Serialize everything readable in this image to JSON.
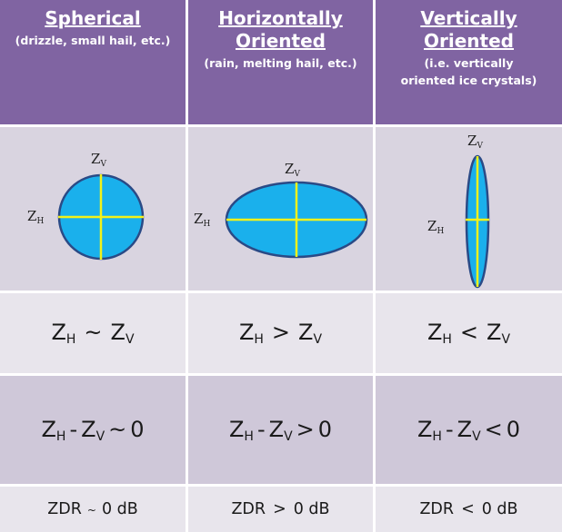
{
  "columns": [
    {
      "title_line1": "Spherical",
      "title_line2": "",
      "subtitle": "(drizzle, small hail, etc.)",
      "reflectivity_relation": {
        "left": "Z",
        "left_sub": "H",
        "op": "~",
        "right": "Z",
        "right_sub": "V"
      },
      "difference_relation": {
        "a": "Z",
        "a_sub": "H",
        "minus": "-",
        "b": "Z",
        "b_sub": "V",
        "op": "~",
        "value": "0"
      },
      "zdr": {
        "label": "ZDR",
        "op": "~",
        "value": "0 dB"
      }
    },
    {
      "title_line1": "Horizontally",
      "title_line2": "Oriented",
      "subtitle": "(rain, melting hail, etc.)",
      "reflectivity_relation": {
        "left": "Z",
        "left_sub": "H",
        "op": ">",
        "right": "Z",
        "right_sub": "V"
      },
      "difference_relation": {
        "a": "Z",
        "a_sub": "H",
        "minus": "-",
        "b": "Z",
        "b_sub": "V",
        "op": ">",
        "value": "0"
      },
      "zdr": {
        "label": "ZDR",
        "op": ">",
        "value": "0 dB"
      }
    },
    {
      "title_line1": "Vertically",
      "title_line2": "Oriented",
      "subtitle": "(i.e. vertically oriented ice crystals)",
      "reflectivity_relation": {
        "left": "Z",
        "left_sub": "H",
        "op": "<",
        "right": "Z",
        "right_sub": "V"
      },
      "difference_relation": {
        "a": "Z",
        "a_sub": "H",
        "minus": "-",
        "b": "Z",
        "b_sub": "V",
        "op": "<",
        "value": "0"
      },
      "zdr": {
        "label": "ZDR",
        "op": "<",
        "value": "0 dB"
      }
    }
  ],
  "axis_labels": {
    "horizontal": "Z",
    "horizontal_sub": "H",
    "vertical": "Z",
    "vertical_sub": "V"
  },
  "colors": {
    "header_bg": "#8064a2",
    "shape_fill": "#1ab0ec",
    "shape_stroke": "#2a4a86",
    "axis_line": "#f2f21a"
  }
}
